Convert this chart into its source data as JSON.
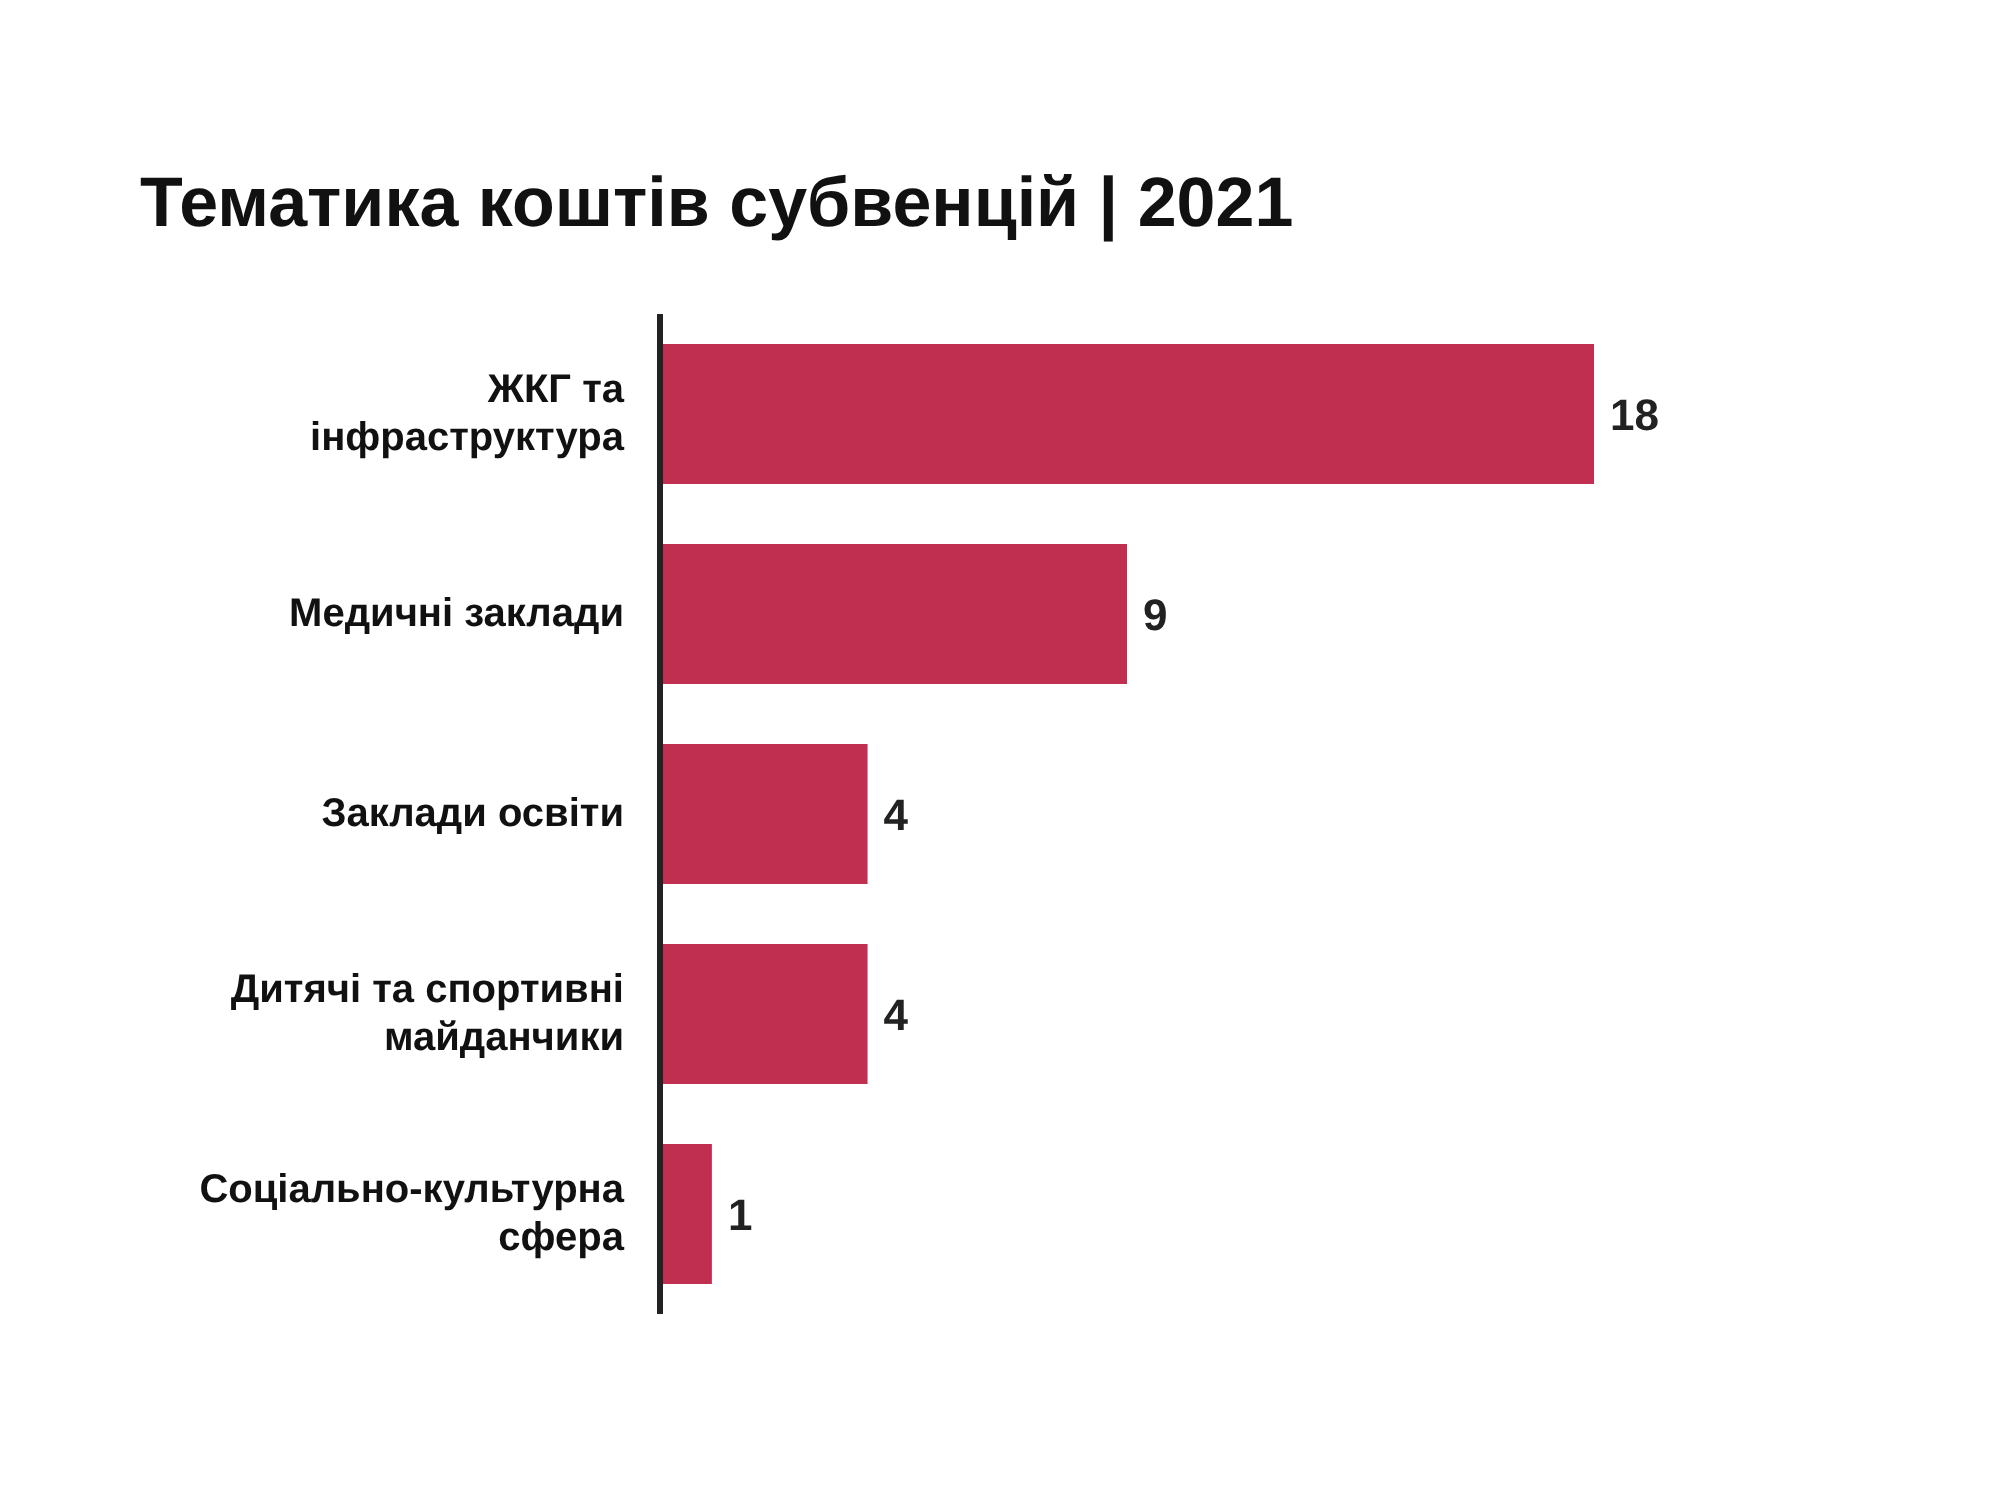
{
  "chart_data": {
    "type": "bar",
    "title": "Тематика коштів субвенцій | 2021",
    "orientation": "horizontal",
    "categories": [
      "ЖКГ та інфраструктура",
      "Медичні заклади",
      "Заклади освіти",
      "Дитячі та спортивні майданчики",
      "Соціально-культурна сфера"
    ],
    "values": [
      18,
      9,
      4,
      4,
      1
    ],
    "color": "#c02f50",
    "data_labels": true
  }
}
